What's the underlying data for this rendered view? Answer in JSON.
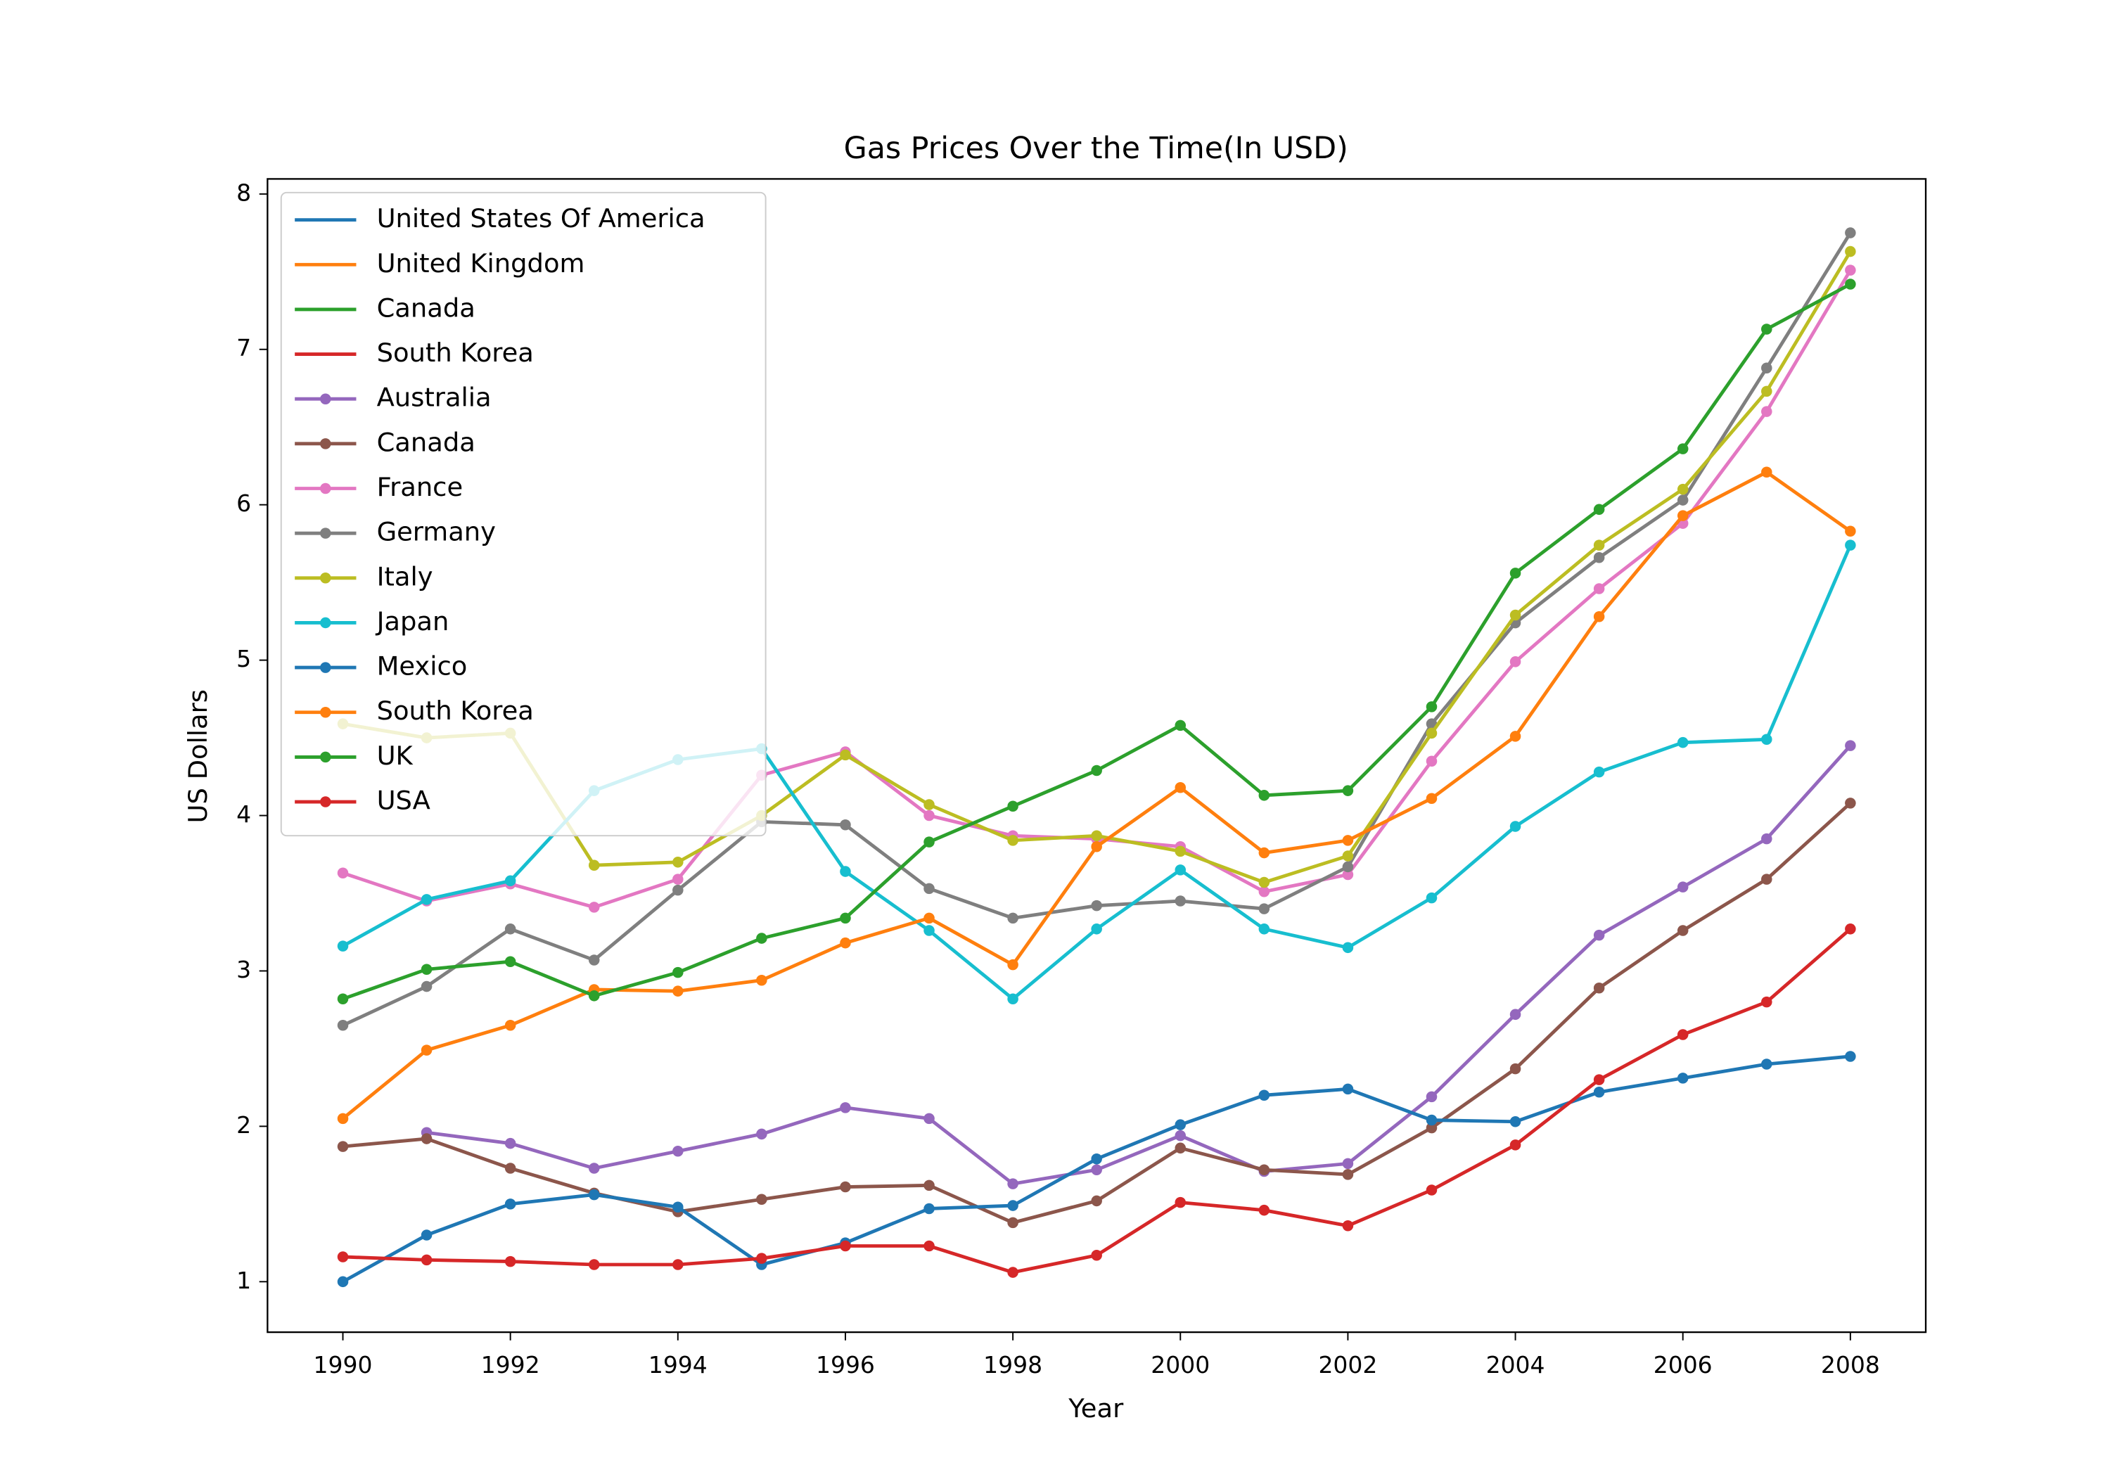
{
  "chart_data": {
    "type": "line",
    "title": "Gas Prices Over the Time(In USD)",
    "x_label": "Year",
    "y_label": "US Dollars",
    "x": [
      1990,
      1991,
      1992,
      1993,
      1994,
      1995,
      1996,
      1997,
      1998,
      1999,
      2000,
      2001,
      2002,
      2003,
      2004,
      2005,
      2006,
      2007,
      2008
    ],
    "xlim": [
      1989.1,
      2008.9
    ],
    "xticks": [
      1990,
      1992,
      1994,
      1996,
      1998,
      2000,
      2002,
      2004,
      2006,
      2008
    ],
    "ylim": [
      0.675,
      8.097
    ],
    "yticks": [
      1,
      2,
      3,
      4,
      5,
      6,
      7,
      8
    ],
    "grid": false,
    "legend": "upper left",
    "series": [
      {
        "name": "United States Of America",
        "color": "#1f77b4",
        "marker": false,
        "values": [
          null,
          null,
          null,
          null,
          null,
          null,
          null,
          null,
          null,
          null,
          null,
          null,
          null,
          null,
          null,
          null,
          null,
          null,
          null
        ]
      },
      {
        "name": "United Kingdom",
        "color": "#ff7f0e",
        "marker": false,
        "values": [
          null,
          null,
          null,
          null,
          null,
          null,
          null,
          null,
          null,
          null,
          null,
          null,
          null,
          null,
          null,
          null,
          null,
          null,
          null
        ]
      },
      {
        "name": "Canada",
        "color": "#2ca02c",
        "marker": false,
        "values": [
          null,
          null,
          null,
          null,
          null,
          null,
          null,
          null,
          null,
          null,
          null,
          null,
          null,
          null,
          null,
          null,
          null,
          null,
          null
        ]
      },
      {
        "name": "South Korea",
        "color": "#d62728",
        "marker": false,
        "values": [
          null,
          null,
          null,
          null,
          null,
          null,
          null,
          null,
          null,
          null,
          null,
          null,
          null,
          null,
          null,
          null,
          null,
          null,
          null
        ]
      },
      {
        "name": "Australia",
        "color": "#9467bd",
        "marker": true,
        "values": [
          null,
          1.96,
          1.89,
          1.73,
          1.84,
          1.95,
          2.12,
          2.05,
          1.63,
          1.72,
          1.94,
          1.71,
          1.76,
          2.19,
          2.72,
          3.23,
          3.54,
          3.85,
          4.45
        ]
      },
      {
        "name": "Canada",
        "color": "#8c564b",
        "marker": true,
        "values": [
          1.87,
          1.92,
          1.73,
          1.57,
          1.45,
          1.53,
          1.61,
          1.62,
          1.38,
          1.52,
          1.86,
          1.72,
          1.69,
          1.99,
          2.37,
          2.89,
          3.26,
          3.59,
          4.08
        ]
      },
      {
        "name": "France",
        "color": "#e377c2",
        "marker": true,
        "values": [
          3.63,
          3.45,
          3.56,
          3.41,
          3.59,
          4.26,
          4.41,
          4.0,
          3.87,
          3.85,
          3.8,
          3.51,
          3.62,
          4.35,
          4.99,
          5.46,
          5.88,
          6.6,
          7.51
        ]
      },
      {
        "name": "Germany",
        "color": "#7f7f7f",
        "marker": true,
        "values": [
          2.65,
          2.9,
          3.27,
          3.07,
          3.52,
          3.96,
          3.94,
          3.53,
          3.34,
          3.42,
          3.45,
          3.4,
          3.67,
          4.59,
          5.24,
          5.66,
          6.03,
          6.88,
          7.75
        ]
      },
      {
        "name": "Italy",
        "color": "#bcbd22",
        "marker": true,
        "values": [
          4.59,
          4.5,
          4.53,
          3.68,
          3.7,
          4.0,
          4.39,
          4.07,
          3.84,
          3.87,
          3.77,
          3.57,
          3.74,
          4.53,
          5.29,
          5.74,
          6.1,
          6.73,
          7.63
        ]
      },
      {
        "name": "Japan",
        "color": "#17becf",
        "marker": true,
        "values": [
          3.16,
          3.46,
          3.58,
          4.16,
          4.36,
          4.43,
          3.64,
          3.26,
          2.82,
          3.27,
          3.65,
          3.27,
          3.15,
          3.47,
          3.93,
          4.28,
          4.47,
          4.49,
          5.74
        ]
      },
      {
        "name": "Mexico",
        "color": "#1f77b4",
        "marker": true,
        "values": [
          1.0,
          1.3,
          1.5,
          1.56,
          1.48,
          1.11,
          1.25,
          1.47,
          1.49,
          1.79,
          2.01,
          2.2,
          2.24,
          2.04,
          2.03,
          2.22,
          2.31,
          2.4,
          2.45
        ]
      },
      {
        "name": "South Korea",
        "color": "#ff7f0e",
        "marker": true,
        "values": [
          2.05,
          2.49,
          2.65,
          2.88,
          2.87,
          2.94,
          3.18,
          3.34,
          3.04,
          3.8,
          4.18,
          3.76,
          3.84,
          4.11,
          4.51,
          5.28,
          5.93,
          6.21,
          5.83
        ]
      },
      {
        "name": "UK",
        "color": "#2ca02c",
        "marker": true,
        "values": [
          2.82,
          3.01,
          3.06,
          2.84,
          2.99,
          3.21,
          3.34,
          3.83,
          4.06,
          4.29,
          4.58,
          4.13,
          4.16,
          4.7,
          5.56,
          5.97,
          6.36,
          7.13,
          7.42
        ]
      },
      {
        "name": "USA",
        "color": "#d62728",
        "marker": true,
        "values": [
          1.16,
          1.14,
          1.13,
          1.11,
          1.11,
          1.15,
          1.23,
          1.23,
          1.06,
          1.17,
          1.51,
          1.46,
          1.36,
          1.59,
          1.88,
          2.3,
          2.59,
          2.8,
          3.27
        ]
      }
    ]
  }
}
